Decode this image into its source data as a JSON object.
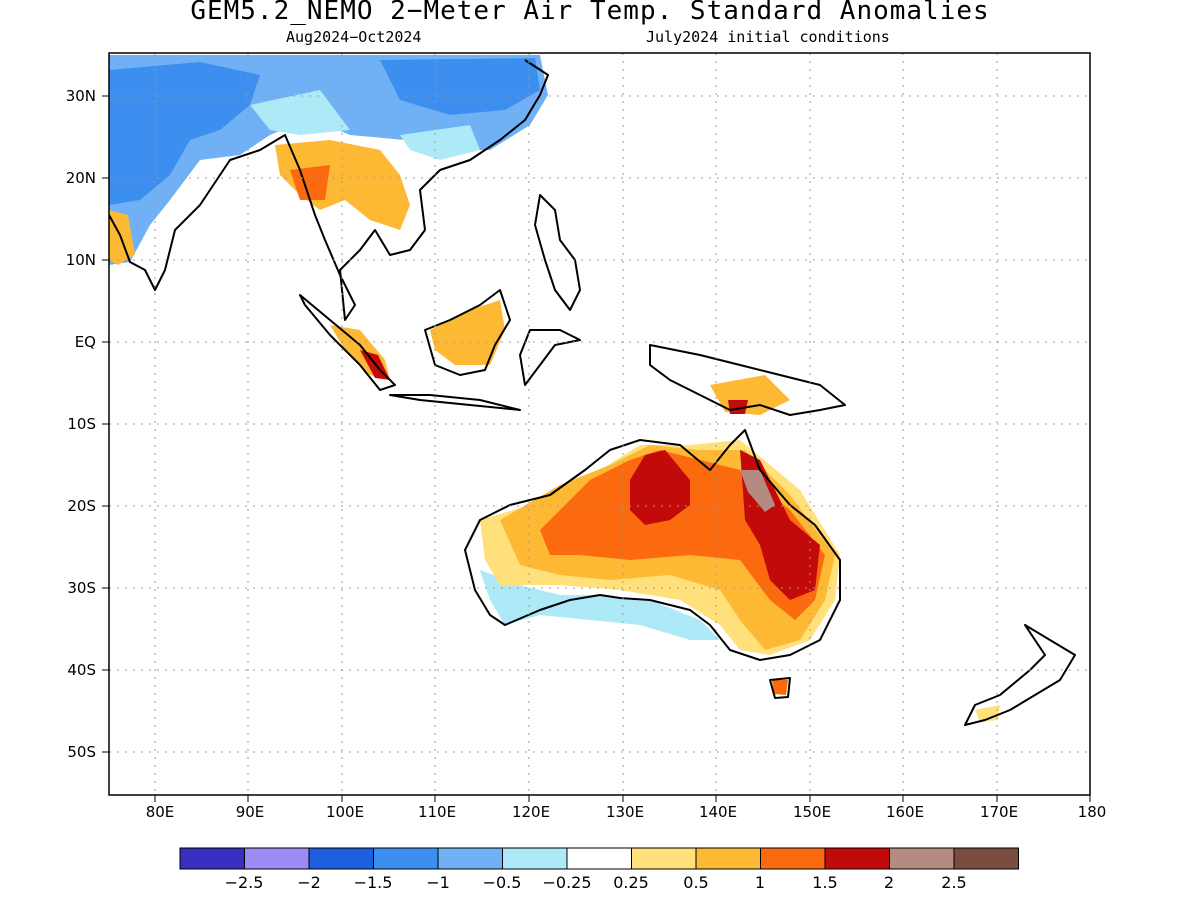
{
  "title": "GEM5.2_NEMO 2−Meter Air Temp. Standard Anomalies",
  "subtitle_left": "Aug2024−Oct2024",
  "subtitle_right": "July2024 initial conditions",
  "lat_labels": [
    "30N",
    "20N",
    "10N",
    "EQ",
    "10S",
    "20S",
    "30S",
    "40S",
    "50S"
  ],
  "lon_labels": [
    "80E",
    "90E",
    "100E",
    "110E",
    "120E",
    "130E",
    "140E",
    "150E",
    "160E",
    "170E",
    "180"
  ],
  "colorbar": {
    "labels": [
      "−2.5",
      "−2",
      "−1.5",
      "−1",
      "−0.5",
      "−0.25",
      "0.25",
      "0.5",
      "1",
      "1.5",
      "2",
      "2.5"
    ],
    "colors": [
      "#3a2ec0",
      "#9b8cf5",
      "#1e5fe0",
      "#3c8fef",
      "#70b1f5",
      "#aee9f8",
      "#ffffff",
      "#ffe07a",
      "#fdb934",
      "#fb6a0f",
      "#c30a0a",
      "#b58a80",
      "#7a4c40"
    ]
  }
}
